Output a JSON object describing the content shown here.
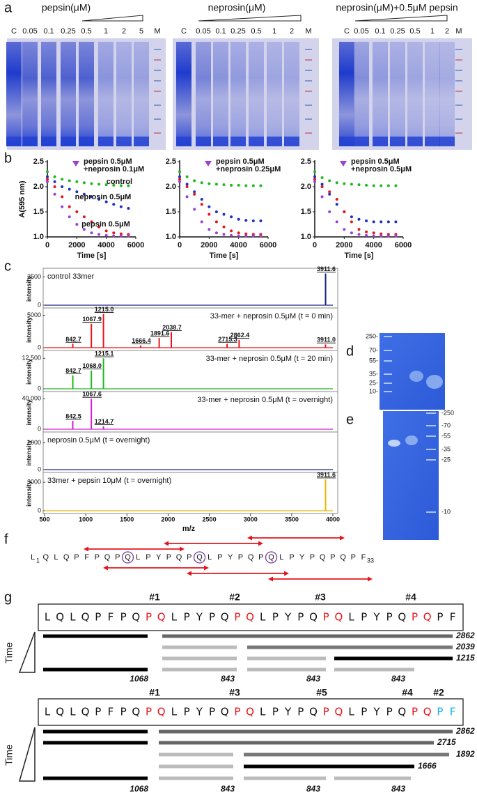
{
  "panel_labels": [
    "a",
    "b",
    "c",
    "d",
    "e",
    "f",
    "g"
  ],
  "panel_a": {
    "gels": [
      {
        "title": "pepsin(μM)",
        "lanes": [
          "C",
          "0.05",
          "0.1",
          "0.25",
          "0.5",
          "1",
          "2",
          "5",
          "M"
        ]
      },
      {
        "title": "neprosin(μM)",
        "lanes": [
          "C",
          "0.05",
          "0.1",
          "0.25",
          "0.5",
          "1",
          "2",
          "M"
        ]
      },
      {
        "title": "neprosin(μM)+0.5μM pepsin",
        "lanes": [
          "C",
          "0.05",
          "0.1",
          "0.25",
          "0.5",
          "1",
          "2",
          "M"
        ]
      }
    ]
  },
  "chart_data": [
    {
      "type": "line",
      "x_label": "Time [s]",
      "y_label": "A(595 nm)",
      "x": [
        0,
        500,
        1000,
        1500,
        2000,
        2500,
        3000,
        3500,
        4000,
        4500,
        5000,
        5500
      ],
      "xlim": [
        0,
        6000
      ],
      "xticks": [
        0,
        2000,
        4000,
        6000
      ],
      "ylim": [
        1,
        2.5
      ],
      "yticks": [
        {
          "value": 1,
          "label": "1.0"
        },
        1.5,
        {
          "value": 2,
          "label": "2.0"
        },
        2.5
      ],
      "series": [
        {
          "name": "control",
          "color": "#1fb81f",
          "values": [
            2.3,
            2.2,
            2.15,
            2.12,
            2.1,
            2.08,
            2.06,
            2.05,
            2.04,
            2.03,
            2.02,
            2.02
          ]
        },
        {
          "name": "neprosin 0.5μM",
          "color": "#1c2fc9",
          "values": [
            2.2,
            2.1,
            2.0,
            1.95,
            1.9,
            1.85,
            1.8,
            1.75,
            1.7,
            1.65,
            1.6,
            1.57
          ]
        },
        {
          "name": "pepsin 0.5μM",
          "color": "#e8141c",
          "values": [
            2.15,
            2.0,
            1.8,
            1.6,
            1.5,
            1.4,
            1.3,
            1.2,
            1.12,
            1.08,
            1.06,
            1.05
          ]
        },
        {
          "name": [
            "pepsin 0.5μM",
            "+neprosin 0.1μM"
          ],
          "color": "#9b3fd6",
          "values": [
            2.1,
            1.85,
            1.6,
            1.4,
            1.25,
            1.15,
            1.08,
            1.05,
            1.03,
            1.02,
            1.02,
            1.02
          ]
        }
      ]
    },
    {
      "type": "line",
      "x_label": "Time [s]",
      "x": [
        0,
        500,
        1000,
        1500,
        2000,
        2500,
        3000,
        3500,
        4000,
        4500,
        5000,
        5500
      ],
      "xlim": [
        0,
        6000
      ],
      "xticks": [
        0,
        2000,
        4000,
        6000
      ],
      "ylim": [
        1,
        2.5
      ],
      "yticks": [
        {
          "value": 1,
          "label": "1.0"
        },
        1.5,
        {
          "value": 2,
          "label": "2.0"
        },
        2.5
      ],
      "series": [
        {
          "color": "#1fb81f",
          "values": [
            2.3,
            2.2,
            2.12,
            2.08,
            2.06,
            2.05,
            2.04,
            2.03,
            2.03,
            2.02,
            2.02,
            2.02
          ]
        },
        {
          "color": "#1c2fc9",
          "values": [
            2.2,
            2.05,
            1.9,
            1.75,
            1.6,
            1.5,
            1.45,
            1.4,
            1.35,
            1.33,
            1.32,
            1.32
          ]
        },
        {
          "color": "#e8141c",
          "values": [
            2.15,
            2.0,
            1.85,
            1.65,
            1.45,
            1.3,
            1.2,
            1.12,
            1.08,
            1.06,
            1.05,
            1.05
          ]
        },
        {
          "name": [
            "pepsin 0.5μM",
            "+neprosin 0.25μM"
          ],
          "color": "#9b3fd6",
          "values": [
            2.1,
            1.8,
            1.55,
            1.3,
            1.15,
            1.08,
            1.05,
            1.03,
            1.02,
            1.02,
            1.02,
            1.02
          ]
        }
      ]
    },
    {
      "type": "line",
      "x_label": "Time [s]",
      "x": [
        0,
        500,
        1000,
        1500,
        2000,
        2500,
        3000,
        3500,
        4000,
        4500,
        5000,
        5500
      ],
      "xlim": [
        0,
        6000
      ],
      "xticks": [
        0,
        2000,
        4000,
        6000
      ],
      "ylim": [
        1,
        2.5
      ],
      "yticks": [
        {
          "value": 1,
          "label": "1.0"
        },
        1.5,
        {
          "value": 2,
          "label": "2.0"
        },
        2.5
      ],
      "series": [
        {
          "color": "#1fb81f",
          "values": [
            2.3,
            2.18,
            2.12,
            2.08,
            2.06,
            2.05,
            2.04,
            2.03,
            2.02,
            2.02,
            2.02,
            2.02
          ]
        },
        {
          "color": "#1c2fc9",
          "values": [
            2.2,
            2.05,
            1.85,
            1.65,
            1.5,
            1.4,
            1.35,
            1.32,
            1.3,
            1.3,
            1.3,
            1.3
          ]
        },
        {
          "color": "#e8141c",
          "values": [
            2.15,
            2.0,
            1.9,
            1.75,
            1.5,
            1.3,
            1.15,
            1.1,
            1.08,
            1.06,
            1.05,
            1.05
          ]
        },
        {
          "name": [
            "pepsin 0.5μM",
            "+neprosin 0.5μM"
          ],
          "color": "#9b3fd6",
          "values": [
            2.1,
            1.8,
            1.5,
            1.3,
            1.15,
            1.08,
            1.05,
            1.03,
            1.02,
            1.02,
            1.02,
            1.02
          ]
        }
      ]
    },
    {
      "type": "stem",
      "legend": "control 33mer",
      "legend_color": "#e8141c",
      "color": "#1a237e",
      "y_label": "intensity",
      "xlim": [
        500,
        4000
      ],
      "ylim": [
        0,
        2900
      ],
      "yticks": [
        0,
        2500
      ],
      "x": [
        3911.6
      ],
      "values": [
        2800
      ]
    },
    {
      "type": "stem",
      "legend": "33-mer + neprosin 0.5μM (t = 0 min)",
      "legend_color": "#1a7fd0",
      "color": "#e8141c",
      "y_label": "intensity",
      "xlim": [
        500,
        4000
      ],
      "ylim": [
        0,
        5500
      ],
      "yticks": [
        0,
        5000
      ],
      "x": [
        842.7,
        1067.9,
        {
          "value": 1215,
          "label": "1215.0"
        },
        1666.4,
        1891.6,
        2038.7,
        2715.3,
        2862.4,
        {
          "value": 3911,
          "label": "3911.0"
        }
      ],
      "values": [
        600,
        3700,
        5200,
        350,
        1500,
        2400,
        600,
        1200,
        500
      ]
    },
    {
      "type": "stem",
      "legend": "33-mer + neprosin 0.5μM (t = 20 min)",
      "legend_color": "#1a7fd0",
      "color": "#1fb81f",
      "y_label": "intensity",
      "xlim": [
        500,
        4000
      ],
      "ylim": [
        0,
        14000
      ],
      "yticks": [
        0,
        {
          "value": 12500,
          "label": "12,500"
        }
      ],
      "x": [
        842.7,
        {
          "value": 1068,
          "label": "1068.0"
        },
        1215.1
      ],
      "values": [
        5500,
        7500,
        12500
      ]
    },
    {
      "type": "stem",
      "legend": "33-mer + neprosin 0.5μM (t = overnight)",
      "legend_color": "#1a7fd0",
      "color": "#d21ed2",
      "y_label": "intensity",
      "xlim": [
        500,
        4000
      ],
      "ylim": [
        0,
        44000
      ],
      "yticks": [
        0,
        {
          "value": 40000,
          "label": "40,000"
        }
      ],
      "x": [
        842.5,
        1067.6,
        1214.7
      ],
      "values": [
        11000,
        40000,
        4000
      ]
    },
    {
      "type": "stem",
      "legend": "neprosin 0.5μM (t = overnight)",
      "legend_color": "#e8141c",
      "color": "#1a237e",
      "y_label": "intensity",
      "xlim": [
        500,
        4000
      ],
      "ylim": [
        0,
        1250
      ],
      "yticks": [
        0,
        1000
      ],
      "x": [],
      "values": []
    },
    {
      "type": "stem",
      "legend": "33mer + pepsin 10μM (t = overnight)",
      "legend_color": "#e8141c",
      "color": "#e6b800",
      "y_label": "intensity",
      "xlim": [
        500,
        4000
      ],
      "ylim": [
        0,
        3600
      ],
      "yticks": [
        0,
        3000
      ],
      "xticks": [
        500,
        1000,
        1500,
        2000,
        2500,
        3000,
        3500,
        4000
      ],
      "x_label": "m/z",
      "x": [
        3911.6
      ],
      "values": [
        3300
      ]
    }
  ],
  "panel_d": {
    "markers": [
      "250-",
      "70-",
      "55-",
      "35-",
      "25-",
      "10-"
    ]
  },
  "panel_e": {
    "markers": [
      "-250",
      "-70",
      "-55",
      "-35",
      "-25",
      "-10"
    ]
  },
  "panel_f": {
    "sequence": [
      "L",
      "Q",
      "L",
      "Q",
      "P",
      "F",
      "P",
      "Q",
      "P",
      "Q",
      "L",
      "P",
      "Y",
      "P",
      "Q",
      "P",
      "Q",
      "L",
      "P",
      "Y",
      "P",
      "Q",
      "P",
      "Q",
      "L",
      "P",
      "Y",
      "P",
      "Q",
      "P",
      "Q",
      "P",
      "F"
    ],
    "first": "1",
    "last": "33"
  },
  "panel_g": {
    "schemes": [
      {
        "sites": [
          "#1",
          "#2",
          "#3",
          "#4"
        ],
        "sequence": [
          "L",
          "Q",
          "L",
          "Q",
          "P",
          "F",
          "P",
          "Q",
          "P",
          "Q",
          "L",
          "P",
          "Y",
          "P",
          "Q",
          "P",
          "Q",
          "L",
          "P",
          "Y",
          "P",
          "Q",
          "P",
          "Q",
          "L",
          "P",
          "Y",
          "P",
          "Q",
          "P",
          "Q",
          "P",
          "F"
        ],
        "time_label": "Time",
        "fragment_labels": [
          2862,
          2039,
          1215
        ],
        "bottom_labels": [
          1068,
          843,
          843,
          843
        ]
      },
      {
        "sites": [
          "#1",
          "#3",
          "#5",
          "#4",
          "#2"
        ],
        "sequence": [
          "L",
          "Q",
          "L",
          "Q",
          "P",
          "F",
          "P",
          "Q",
          "P",
          "Q",
          "L",
          "P",
          "Y",
          "P",
          "Q",
          "P",
          "Q",
          "L",
          "P",
          "Y",
          "P",
          "Q",
          "P",
          "Q",
          "L",
          "P",
          "Y",
          "P",
          "Q",
          "P",
          "Q",
          "P",
          "F"
        ],
        "time_label": "Time",
        "fragment_labels": [
          2862,
          2715,
          1892,
          1666
        ],
        "bottom_labels": [
          1068,
          843,
          843,
          843
        ]
      }
    ]
  }
}
